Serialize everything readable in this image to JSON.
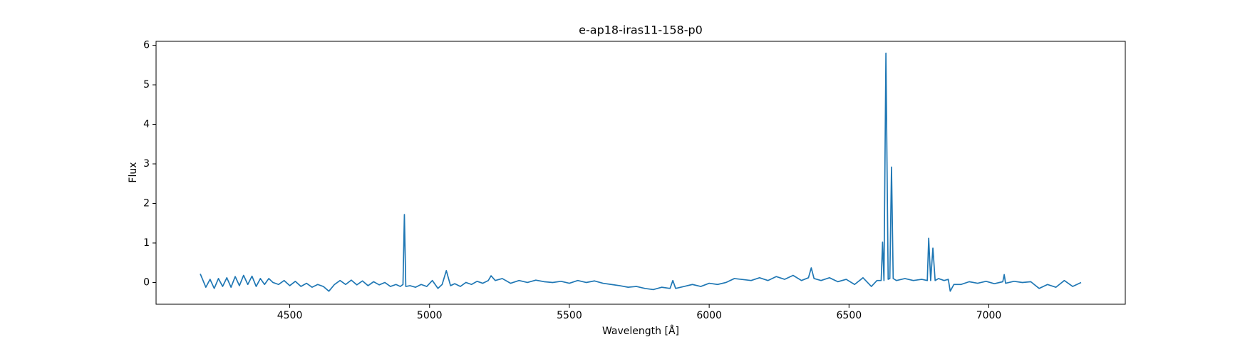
{
  "chart_data": {
    "type": "line",
    "title": "e-ap18-iras11-158-p0",
    "x_label": "Wavelength [Å]",
    "y_label": "Flux",
    "color": "#1f77b4",
    "x": [
      4180,
      4190,
      4200,
      4215,
      4230,
      4245,
      4260,
      4275,
      4290,
      4305,
      4320,
      4335,
      4350,
      4365,
      4380,
      4395,
      4410,
      4425,
      4440,
      4460,
      4480,
      4500,
      4520,
      4540,
      4560,
      4580,
      4600,
      4620,
      4640,
      4660,
      4680,
      4700,
      4720,
      4740,
      4760,
      4780,
      4800,
      4820,
      4840,
      4860,
      4880,
      4895,
      4905,
      4910,
      4915,
      4930,
      4950,
      4970,
      4990,
      5010,
      5030,
      5045,
      5060,
      5075,
      5090,
      5110,
      5130,
      5150,
      5170,
      5190,
      5210,
      5220,
      5235,
      5260,
      5290,
      5320,
      5350,
      5380,
      5410,
      5440,
      5470,
      5500,
      5530,
      5560,
      5590,
      5620,
      5650,
      5680,
      5710,
      5740,
      5770,
      5800,
      5830,
      5860,
      5870,
      5880,
      5910,
      5940,
      5970,
      6000,
      6030,
      6060,
      6090,
      6150,
      6180,
      6210,
      6240,
      6270,
      6300,
      6330,
      6355,
      6365,
      6375,
      6400,
      6430,
      6460,
      6490,
      6520,
      6550,
      6580,
      6600,
      6615,
      6620,
      6625,
      6632,
      6640,
      6646,
      6652,
      6658,
      6670,
      6700,
      6730,
      6760,
      6780,
      6785,
      6792,
      6800,
      6808,
      6820,
      6840,
      6855,
      6862,
      6875,
      6900,
      6930,
      6960,
      6990,
      7020,
      7050,
      7055,
      7060,
      7090,
      7120,
      7150,
      7180,
      7210,
      7240,
      7270,
      7300,
      7330
    ],
    "values": [
      0.22,
      0.05,
      -0.12,
      0.08,
      -0.15,
      0.1,
      -0.1,
      0.12,
      -0.12,
      0.15,
      -0.08,
      0.18,
      -0.05,
      0.16,
      -0.1,
      0.1,
      -0.05,
      0.1,
      0.0,
      -0.05,
      0.05,
      -0.08,
      0.03,
      -0.1,
      -0.02,
      -0.12,
      -0.05,
      -0.1,
      -0.22,
      -0.05,
      0.05,
      -0.05,
      0.06,
      -0.06,
      0.04,
      -0.08,
      0.02,
      -0.06,
      0.0,
      -0.1,
      -0.05,
      -0.1,
      -0.05,
      1.72,
      -0.1,
      -0.08,
      -0.12,
      -0.05,
      -0.1,
      0.05,
      -0.15,
      -0.05,
      0.3,
      -0.08,
      -0.03,
      -0.1,
      0.0,
      -0.05,
      0.03,
      -0.02,
      0.05,
      0.17,
      0.05,
      0.1,
      -0.02,
      0.05,
      0.0,
      0.06,
      0.02,
      0.0,
      0.03,
      -0.02,
      0.05,
      0.0,
      0.04,
      -0.02,
      -0.05,
      -0.08,
      -0.12,
      -0.1,
      -0.15,
      -0.18,
      -0.12,
      -0.15,
      0.05,
      -0.15,
      -0.1,
      -0.05,
      -0.1,
      -0.02,
      -0.05,
      0.0,
      0.1,
      0.05,
      0.12,
      0.05,
      0.15,
      0.08,
      0.18,
      0.05,
      0.12,
      0.37,
      0.1,
      0.05,
      0.12,
      0.02,
      0.08,
      -0.05,
      0.12,
      -0.1,
      0.05,
      0.05,
      1.02,
      0.05,
      5.8,
      0.08,
      0.1,
      2.92,
      0.1,
      0.05,
      0.1,
      0.05,
      0.08,
      0.05,
      1.12,
      0.05,
      0.87,
      0.05,
      0.1,
      0.05,
      0.08,
      -0.22,
      -0.05,
      -0.05,
      0.02,
      -0.02,
      0.03,
      -0.03,
      0.02,
      0.2,
      -0.02,
      0.03,
      0.0,
      0.02,
      -0.15,
      -0.05,
      -0.12,
      0.05,
      -0.1,
      0.0
    ],
    "xlim": [
      4022,
      7488
    ],
    "ylim": [
      -0.55,
      6.1
    ],
    "xticks": [
      4500,
      5000,
      5500,
      6000,
      6500,
      7000
    ],
    "yticks": [
      0,
      1,
      2,
      3,
      4,
      5,
      6
    ]
  }
}
